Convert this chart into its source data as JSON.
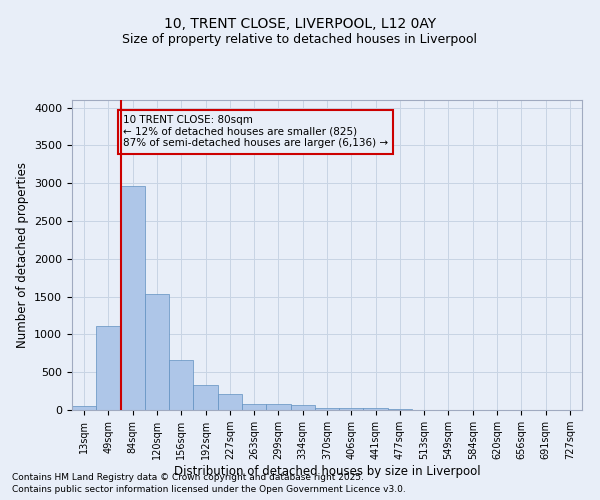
{
  "title_line1": "10, TRENT CLOSE, LIVERPOOL, L12 0AY",
  "title_line2": "Size of property relative to detached houses in Liverpool",
  "xlabel": "Distribution of detached houses by size in Liverpool",
  "ylabel": "Number of detached properties",
  "categories": [
    "13sqm",
    "49sqm",
    "84sqm",
    "120sqm",
    "156sqm",
    "192sqm",
    "227sqm",
    "263sqm",
    "299sqm",
    "334sqm",
    "370sqm",
    "406sqm",
    "441sqm",
    "477sqm",
    "513sqm",
    "549sqm",
    "584sqm",
    "620sqm",
    "656sqm",
    "691sqm",
    "727sqm"
  ],
  "values": [
    55,
    1110,
    2960,
    1530,
    655,
    335,
    215,
    85,
    85,
    65,
    30,
    25,
    20,
    15,
    5,
    2,
    1,
    0,
    0,
    0,
    0
  ],
  "bar_color": "#aec6e8",
  "bar_edge_color": "#6090c0",
  "grid_color": "#c8d4e4",
  "background_color": "#e8eef8",
  "vline_color": "#cc0000",
  "annotation_text": "10 TRENT CLOSE: 80sqm\n← 12% of detached houses are smaller (825)\n87% of semi-detached houses are larger (6,136) →",
  "annotation_box_color": "#cc0000",
  "ylim": [
    0,
    4100
  ],
  "yticks": [
    0,
    500,
    1000,
    1500,
    2000,
    2500,
    3000,
    3500,
    4000
  ],
  "footnote1": "Contains HM Land Registry data © Crown copyright and database right 2025.",
  "footnote2": "Contains public sector information licensed under the Open Government Licence v3.0."
}
